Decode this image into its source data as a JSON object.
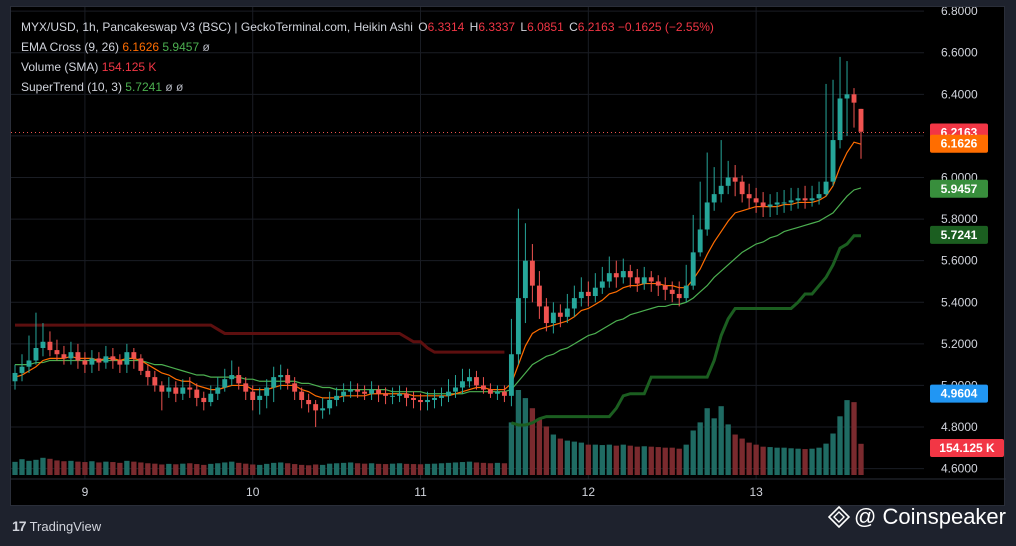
{
  "legend": {
    "title": "MYX/USD, 1h, Pancakeswap V3 (BSC) | GeckoTerminal.com, Heikin Ashi",
    "o_label": "O",
    "o_value": "6.3314",
    "h_label": "H",
    "h_value": "6.3337",
    "l_label": "L",
    "l_value": "6.0851",
    "c_label": "C",
    "c_value": "6.2163",
    "change": "−0.1625 (−2.55%)",
    "ema_label": "EMA Cross (9, 26)",
    "ema_fast": "6.1626",
    "ema_slow": "5.9457",
    "ema_extra": "ø",
    "vol_label": "Volume (SMA)",
    "vol_value": "154.125 K",
    "st_label": "SuperTrend (10, 3)",
    "st_value": "5.7241",
    "st_extra1": "ø",
    "st_extra2": "ø"
  },
  "price_tags": {
    "close": "6.2163",
    "ema_fast": "6.1626",
    "ema_slow": "5.9457",
    "supertrend": "5.7241",
    "blue": "4.9604",
    "volume": "154.125 K"
  },
  "colors": {
    "up": "#26a69a",
    "down": "#ef5350",
    "ema_fast": "#ff6d00",
    "ema_slow": "#4caf50",
    "supertrend_up": "#1b5e20",
    "supertrend_down": "#5d0f0f",
    "vol_up": "#1f6b63",
    "vol_down": "#7a2a2e",
    "blue_tag": "#2196f3"
  },
  "footer": {
    "tradingview": "TradingView",
    "coinspeaker": "@ Coinspeaker"
  },
  "chart_data": {
    "type": "candlestick",
    "title": "MYX/USD, 1h, Pancakeswap V3 (BSC) | GeckoTerminal.com, Heikin Ashi",
    "ylim": [
      4.55,
      6.82
    ],
    "y_ticks": [
      "6.8000",
      "6.6000",
      "6.4000",
      "6.2000",
      "6.0000",
      "5.8000",
      "5.6000",
      "5.4000",
      "5.2000",
      "5.0000",
      "4.8000",
      "4.6000"
    ],
    "x_ticks": [
      "9",
      "10",
      "11",
      "12",
      "13"
    ],
    "x_tick_index": [
      10,
      34,
      58,
      82,
      106
    ],
    "close_line": 6.2163,
    "closes": [
      5.06,
      5.09,
      5.12,
      5.18,
      5.21,
      5.17,
      5.15,
      5.13,
      5.16,
      5.12,
      5.1,
      5.13,
      5.11,
      5.14,
      5.12,
      5.1,
      5.16,
      5.13,
      5.07,
      5.04,
      5.0,
      4.97,
      4.99,
      4.96,
      4.99,
      4.98,
      4.94,
      4.92,
      4.96,
      4.99,
      5.03,
      5.05,
      5.01,
      4.97,
      4.93,
      4.95,
      4.99,
      5.04,
      5.05,
      5.01,
      4.97,
      4.93,
      4.91,
      4.88,
      4.89,
      4.93,
      4.95,
      4.97,
      4.98,
      4.97,
      4.96,
      4.98,
      4.96,
      4.95,
      4.95,
      4.96,
      4.94,
      4.93,
      4.92,
      4.93,
      4.94,
      4.95,
      4.97,
      4.99,
      5.02,
      5.04,
      5.0,
      4.98,
      4.96,
      4.97,
      4.95,
      5.15,
      5.42,
      5.6,
      5.48,
      5.38,
      5.3,
      5.35,
      5.33,
      5.37,
      5.42,
      5.45,
      5.43,
      5.47,
      5.5,
      5.54,
      5.52,
      5.55,
      5.52,
      5.49,
      5.52,
      5.5,
      5.48,
      5.46,
      5.44,
      5.42,
      5.48,
      5.64,
      5.75,
      5.88,
      5.92,
      5.96,
      6.0,
      5.98,
      5.92,
      5.9,
      5.88,
      5.86,
      5.87,
      5.88,
      5.88,
      5.89,
      5.9,
      5.89,
      5.9,
      5.92,
      5.98,
      6.18,
      6.38,
      6.4,
      6.36,
      6.22
    ],
    "opens": [
      5.02,
      5.06,
      5.09,
      5.12,
      5.18,
      5.21,
      5.17,
      5.15,
      5.13,
      5.16,
      5.12,
      5.1,
      5.13,
      5.11,
      5.14,
      5.12,
      5.1,
      5.16,
      5.13,
      5.07,
      5.04,
      5.0,
      4.97,
      4.99,
      4.96,
      4.99,
      4.98,
      4.94,
      4.92,
      4.96,
      4.99,
      5.03,
      5.05,
      5.01,
      4.97,
      4.93,
      4.95,
      4.99,
      5.04,
      5.05,
      5.01,
      4.97,
      4.93,
      4.91,
      4.88,
      4.89,
      4.93,
      4.95,
      4.97,
      4.98,
      4.97,
      4.96,
      4.98,
      4.96,
      4.95,
      4.95,
      4.96,
      4.94,
      4.93,
      4.92,
      4.93,
      4.94,
      4.95,
      4.97,
      4.99,
      5.02,
      5.04,
      5.0,
      4.98,
      4.96,
      4.97,
      4.95,
      5.15,
      5.42,
      5.6,
      5.48,
      5.38,
      5.3,
      5.35,
      5.33,
      5.37,
      5.42,
      5.45,
      5.43,
      5.47,
      5.5,
      5.54,
      5.52,
      5.55,
      5.52,
      5.49,
      5.52,
      5.5,
      5.48,
      5.46,
      5.44,
      5.42,
      5.48,
      5.64,
      5.75,
      5.88,
      5.92,
      5.96,
      6.0,
      5.98,
      5.92,
      5.9,
      5.88,
      5.86,
      5.87,
      5.88,
      5.88,
      5.89,
      5.9,
      5.89,
      5.9,
      5.92,
      5.98,
      6.18,
      6.38,
      6.4,
      6.33
    ],
    "highs": [
      5.1,
      5.15,
      5.24,
      5.35,
      5.3,
      5.26,
      5.22,
      5.19,
      5.21,
      5.2,
      5.16,
      5.17,
      5.16,
      5.19,
      5.18,
      5.15,
      5.2,
      5.18,
      5.15,
      5.1,
      5.07,
      5.02,
      5.04,
      5.02,
      5.03,
      5.04,
      5.01,
      4.97,
      5.0,
      5.04,
      5.08,
      5.12,
      5.09,
      5.04,
      5.0,
      4.99,
      5.03,
      5.09,
      5.1,
      5.08,
      5.04,
      4.99,
      4.96,
      4.93,
      4.94,
      4.97,
      4.99,
      5.01,
      5.02,
      5.01,
      5.0,
      5.02,
      5.0,
      4.99,
      4.99,
      5.0,
      4.99,
      4.97,
      4.96,
      4.97,
      4.98,
      4.99,
      5.03,
      5.05,
      5.08,
      5.08,
      5.07,
      5.04,
      5.01,
      5.0,
      5.0,
      5.32,
      5.85,
      5.78,
      5.68,
      5.55,
      5.42,
      5.4,
      5.39,
      5.44,
      5.48,
      5.52,
      5.5,
      5.54,
      5.57,
      5.62,
      5.6,
      5.61,
      5.58,
      5.56,
      5.57,
      5.55,
      5.53,
      5.52,
      5.5,
      5.5,
      5.58,
      5.82,
      5.98,
      6.12,
      6.05,
      6.18,
      6.08,
      6.06,
      6.01,
      5.97,
      5.95,
      5.93,
      5.92,
      5.93,
      5.94,
      5.95,
      5.95,
      5.96,
      5.96,
      5.98,
      6.45,
      6.47,
      6.58,
      6.56,
      6.43,
      6.33
    ],
    "lows": [
      4.98,
      5.02,
      5.06,
      5.1,
      5.14,
      5.14,
      5.12,
      5.1,
      5.1,
      5.08,
      5.06,
      5.06,
      5.07,
      5.08,
      5.08,
      5.06,
      5.06,
      5.08,
      5.05,
      5.0,
      4.97,
      4.88,
      4.94,
      4.92,
      4.93,
      4.94,
      4.9,
      4.88,
      4.9,
      4.93,
      4.97,
      5.0,
      4.98,
      4.93,
      4.88,
      4.86,
      4.89,
      4.92,
      4.98,
      4.98,
      4.93,
      4.89,
      4.87,
      4.8,
      4.84,
      4.86,
      4.9,
      4.92,
      4.94,
      4.94,
      4.93,
      4.93,
      4.92,
      4.91,
      4.91,
      4.92,
      4.9,
      4.89,
      4.88,
      4.88,
      4.89,
      4.9,
      4.92,
      4.94,
      4.96,
      4.99,
      4.98,
      4.96,
      4.94,
      4.93,
      4.92,
      4.9,
      5.1,
      5.3,
      5.4,
      5.32,
      5.26,
      5.25,
      5.28,
      5.3,
      5.33,
      5.38,
      5.38,
      5.4,
      5.44,
      5.47,
      5.47,
      5.49,
      5.47,
      5.45,
      5.46,
      5.45,
      5.43,
      5.41,
      5.4,
      5.38,
      5.4,
      5.46,
      5.62,
      5.72,
      5.84,
      5.88,
      5.92,
      5.91,
      5.88,
      5.85,
      5.83,
      5.81,
      5.81,
      5.82,
      5.83,
      5.84,
      5.85,
      5.85,
      5.86,
      5.87,
      5.91,
      5.96,
      6.14,
      6.2,
      6.24,
      6.09
    ],
    "volumes": [
      65,
      78,
      70,
      75,
      85,
      80,
      72,
      68,
      70,
      66,
      64,
      68,
      62,
      66,
      64,
      60,
      70,
      66,
      62,
      58,
      56,
      52,
      55,
      53,
      56,
      58,
      54,
      50,
      55,
      58,
      62,
      66,
      60,
      56,
      52,
      50,
      55,
      60,
      62,
      58,
      54,
      50,
      48,
      52,
      50,
      56,
      58,
      60,
      62,
      58,
      56,
      58,
      55,
      54,
      56,
      58,
      55,
      54,
      53,
      55,
      56,
      58,
      60,
      62,
      64,
      66,
      62,
      60,
      58,
      60,
      58,
      260,
      420,
      380,
      330,
      280,
      240,
      200,
      180,
      170,
      165,
      160,
      150,
      150,
      148,
      150,
      145,
      150,
      145,
      140,
      142,
      140,
      138,
      135,
      135,
      130,
      150,
      220,
      260,
      330,
      280,
      340,
      250,
      200,
      180,
      160,
      150,
      140,
      138,
      135,
      135,
      132,
      130,
      128,
      130,
      135,
      155,
      205,
      290,
      370,
      360,
      154.125
    ],
    "ema_fast": [
      5.04,
      5.05,
      5.07,
      5.09,
      5.12,
      5.13,
      5.13,
      5.13,
      5.14,
      5.13,
      5.13,
      5.13,
      5.12,
      5.13,
      5.13,
      5.12,
      5.13,
      5.13,
      5.12,
      5.1,
      5.08,
      5.06,
      5.05,
      5.03,
      5.02,
      5.02,
      5.0,
      4.99,
      4.98,
      4.98,
      4.99,
      5.0,
      5.0,
      5.0,
      4.98,
      4.98,
      4.98,
      4.99,
      5.0,
      5.0,
      5.0,
      4.98,
      4.97,
      4.95,
      4.94,
      4.94,
      4.94,
      4.95,
      4.95,
      4.95,
      4.95,
      4.96,
      4.96,
      4.96,
      4.96,
      4.96,
      4.96,
      4.95,
      4.95,
      4.95,
      4.95,
      4.95,
      4.95,
      4.96,
      4.97,
      4.98,
      4.99,
      4.99,
      4.98,
      4.98,
      4.98,
      5.01,
      5.1,
      5.19,
      5.25,
      5.27,
      5.28,
      5.29,
      5.3,
      5.31,
      5.33,
      5.36,
      5.37,
      5.39,
      5.41,
      5.44,
      5.45,
      5.47,
      5.48,
      5.48,
      5.49,
      5.49,
      5.49,
      5.48,
      5.48,
      5.47,
      5.47,
      5.51,
      5.56,
      5.63,
      5.69,
      5.74,
      5.79,
      5.83,
      5.84,
      5.85,
      5.86,
      5.86,
      5.86,
      5.86,
      5.87,
      5.87,
      5.88,
      5.88,
      5.88,
      5.89,
      5.91,
      5.96,
      6.05,
      6.12,
      6.17,
      6.16
    ],
    "ema_slow": [
      5.1,
      5.1,
      5.1,
      5.11,
      5.11,
      5.12,
      5.12,
      5.12,
      5.12,
      5.12,
      5.12,
      5.12,
      5.12,
      5.12,
      5.12,
      5.12,
      5.12,
      5.12,
      5.12,
      5.11,
      5.1,
      5.1,
      5.09,
      5.08,
      5.07,
      5.06,
      5.05,
      5.05,
      5.04,
      5.04,
      5.04,
      5.04,
      5.04,
      5.03,
      5.03,
      5.02,
      5.02,
      5.02,
      5.02,
      5.02,
      5.02,
      5.01,
      5.01,
      5.0,
      4.99,
      4.99,
      4.98,
      4.98,
      4.98,
      4.98,
      4.98,
      4.98,
      4.98,
      4.98,
      4.97,
      4.97,
      4.97,
      4.97,
      4.97,
      4.96,
      4.96,
      4.96,
      4.96,
      4.96,
      4.96,
      4.97,
      4.97,
      4.97,
      4.97,
      4.97,
      4.97,
      4.98,
      5.02,
      5.06,
      5.1,
      5.12,
      5.14,
      5.15,
      5.17,
      5.18,
      5.2,
      5.22,
      5.24,
      5.25,
      5.27,
      5.29,
      5.31,
      5.32,
      5.34,
      5.35,
      5.36,
      5.37,
      5.38,
      5.38,
      5.39,
      5.39,
      5.4,
      5.42,
      5.45,
      5.48,
      5.52,
      5.55,
      5.58,
      5.61,
      5.64,
      5.66,
      5.68,
      5.69,
      5.71,
      5.72,
      5.74,
      5.75,
      5.76,
      5.77,
      5.78,
      5.79,
      5.81,
      5.83,
      5.87,
      5.91,
      5.94,
      5.95
    ],
    "supertrend": [
      5.29,
      5.29,
      5.29,
      5.29,
      5.29,
      5.29,
      5.29,
      5.29,
      5.29,
      5.29,
      5.29,
      5.29,
      5.29,
      5.29,
      5.29,
      5.29,
      5.29,
      5.29,
      5.29,
      5.29,
      5.29,
      5.29,
      5.29,
      5.29,
      5.29,
      5.29,
      5.29,
      5.29,
      5.29,
      5.27,
      5.25,
      5.25,
      5.25,
      5.25,
      5.25,
      5.25,
      5.25,
      5.25,
      5.25,
      5.25,
      5.25,
      5.25,
      5.25,
      5.25,
      5.25,
      5.25,
      5.25,
      5.25,
      5.25,
      5.25,
      5.25,
      5.25,
      5.25,
      5.25,
      5.25,
      5.25,
      5.23,
      5.21,
      5.21,
      5.18,
      5.16,
      5.16,
      5.16,
      5.16,
      5.16,
      5.16,
      5.16,
      5.16,
      5.16,
      5.16,
      5.16,
      4.82,
      4.81,
      4.81,
      4.82,
      4.84,
      4.85,
      4.85,
      4.85,
      4.85,
      4.85,
      4.85,
      4.85,
      4.85,
      4.85,
      4.85,
      4.89,
      4.95,
      4.96,
      4.96,
      4.96,
      5.04,
      5.04,
      5.04,
      5.04,
      5.04,
      5.04,
      5.04,
      5.04,
      5.04,
      5.12,
      5.24,
      5.32,
      5.37,
      5.37,
      5.37,
      5.37,
      5.37,
      5.37,
      5.37,
      5.37,
      5.37,
      5.4,
      5.44,
      5.44,
      5.48,
      5.52,
      5.58,
      5.66,
      5.68,
      5.72,
      5.72
    ]
  }
}
